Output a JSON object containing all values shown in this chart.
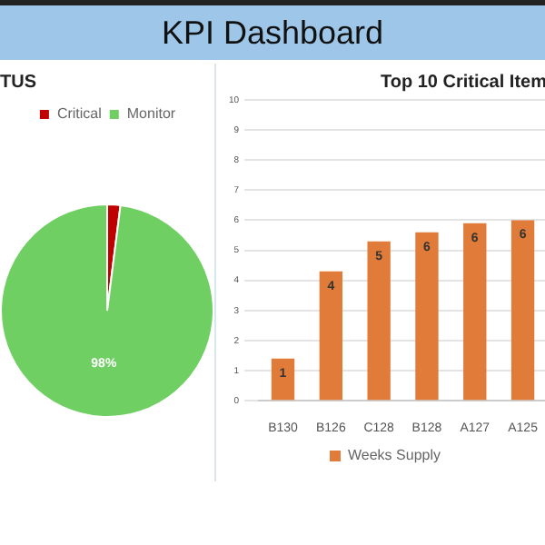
{
  "chart_data": [
    {
      "type": "other",
      "title": "KPI Dashboard"
    },
    {
      "type": "pie",
      "title": "TUS",
      "categories": [
        "Critical",
        "Monitor"
      ],
      "values": [
        2,
        98
      ],
      "colors": [
        "#c00000",
        "#6fcf63"
      ],
      "value_labels": [
        null,
        "98%"
      ],
      "legend": "top"
    },
    {
      "type": "bar",
      "title": "Top 10 Critical Item",
      "categories": [
        "B130",
        "B126",
        "C128",
        "B128",
        "A127",
        "A125"
      ],
      "series": [
        {
          "name": "Weeks Supply",
          "color": "#e07b39",
          "values": [
            1.4,
            4.3,
            5.3,
            5.6,
            5.9,
            6.0
          ],
          "value_labels": [
            "1",
            "4",
            "5",
            "6",
            "6",
            "6"
          ]
        }
      ],
      "ylim": [
        0,
        10
      ],
      "yticks": [
        0,
        1,
        2,
        3,
        4,
        5,
        6,
        7,
        8,
        9,
        10
      ],
      "grid": "y",
      "legend": "bottom"
    }
  ]
}
